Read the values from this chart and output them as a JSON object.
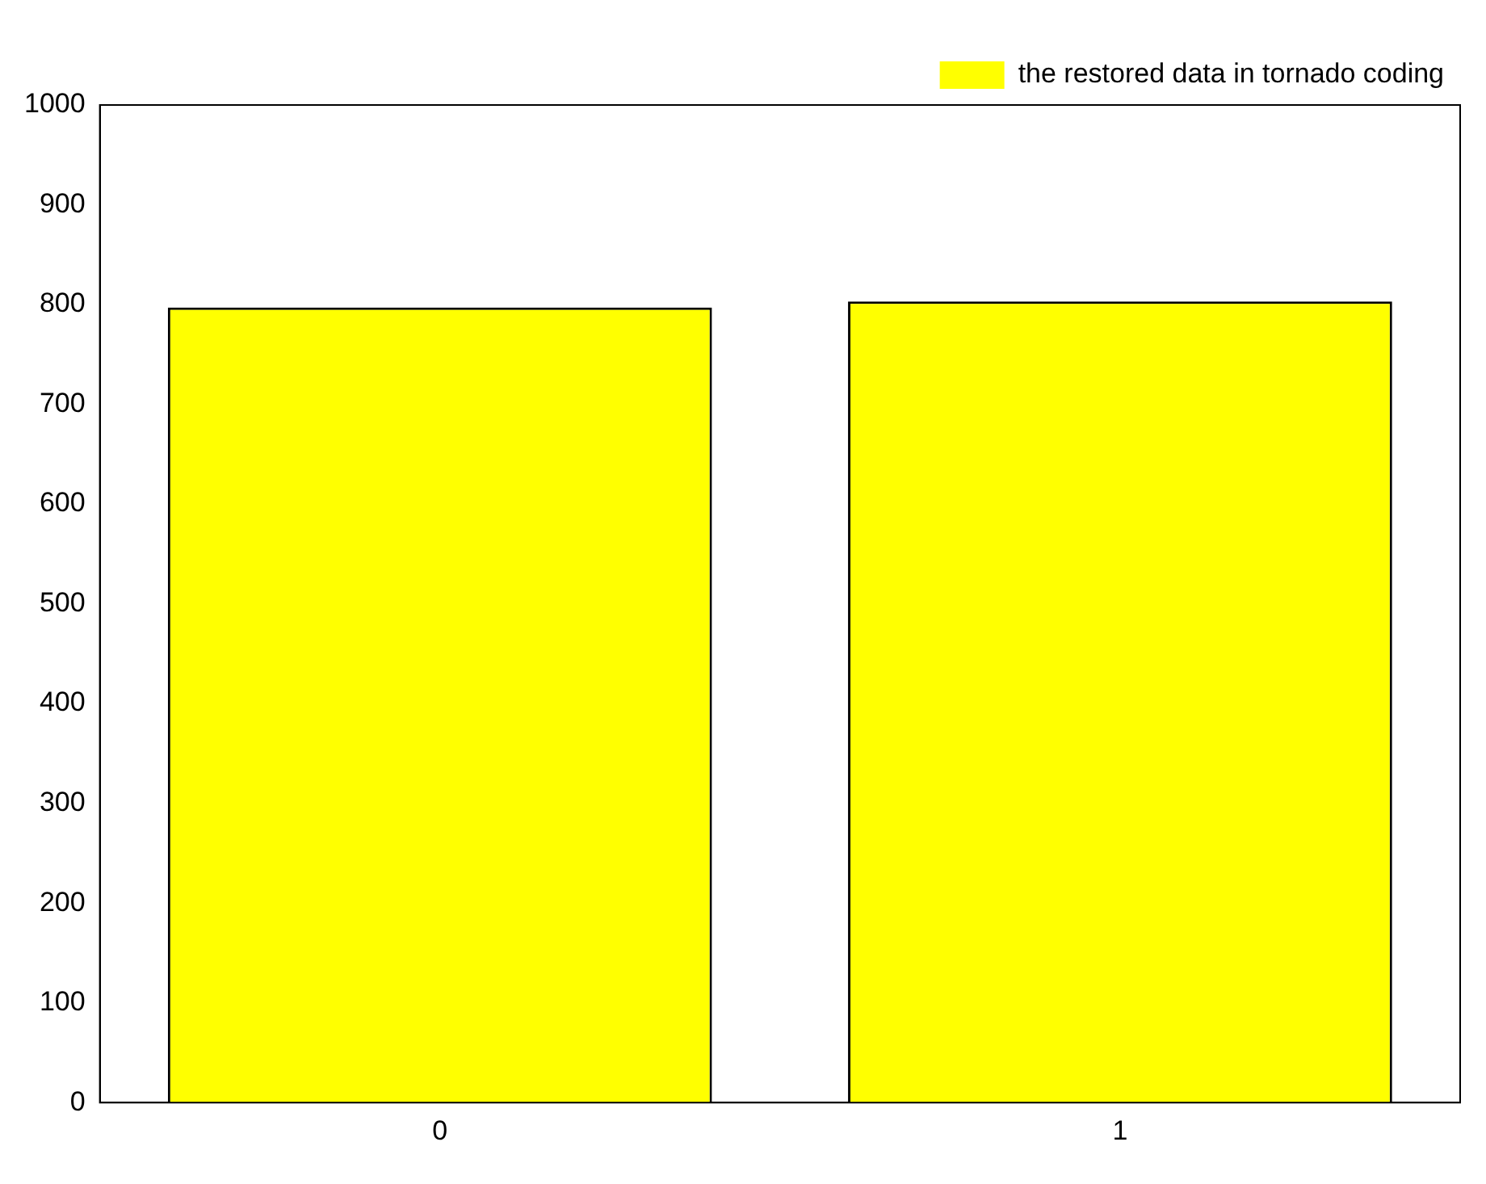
{
  "chart_data": {
    "type": "bar",
    "categories": [
      "0",
      "1"
    ],
    "series": [
      {
        "name": "the restored data in tornado coding",
        "color": "#ffff00",
        "values": [
          797,
          803
        ]
      }
    ],
    "ylim": [
      0,
      1000
    ],
    "yticks": [
      0,
      100,
      200,
      300,
      400,
      500,
      600,
      700,
      800,
      900,
      1000
    ],
    "grid": false,
    "legend": "top right"
  }
}
